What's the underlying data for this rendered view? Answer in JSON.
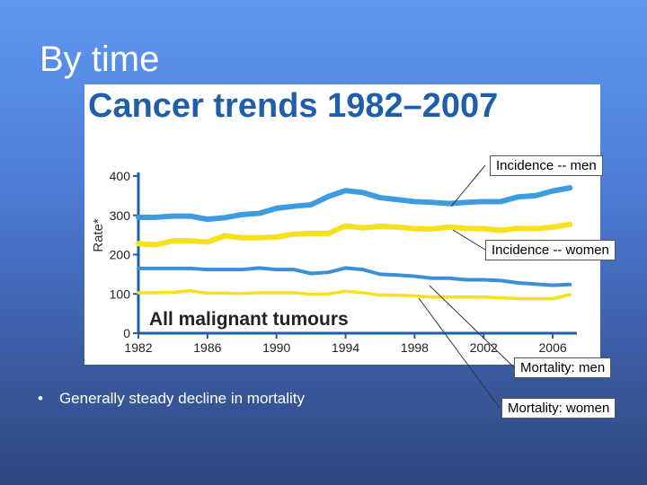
{
  "slide": {
    "title": "By time",
    "bullet": "Generally steady decline in mortality"
  },
  "callouts": [
    {
      "id": "incidence-men",
      "label": "Incidence -- men"
    },
    {
      "id": "incidence-women",
      "label": "Incidence -- women"
    },
    {
      "id": "mortality-men",
      "label": "Mortality:  men"
    },
    {
      "id": "mortality-women",
      "label": "Mortality: women"
    }
  ],
  "chart_data": {
    "type": "line",
    "title": "Cancer trends 1982–2007",
    "subtitle": "All malignant tumours",
    "xlabel": "",
    "ylabel": "Rate*",
    "x": [
      1982,
      1983,
      1984,
      1985,
      1986,
      1987,
      1988,
      1989,
      1990,
      1991,
      1992,
      1993,
      1994,
      1995,
      1996,
      1997,
      1998,
      1999,
      2000,
      2001,
      2002,
      2003,
      2004,
      2005,
      2006,
      2007
    ],
    "xticks": [
      1982,
      1986,
      1990,
      1994,
      1998,
      2002,
      2006
    ],
    "yticks": [
      0,
      100,
      200,
      300,
      400
    ],
    "xlim": [
      1982,
      2007.4
    ],
    "ylim": [
      0,
      400
    ],
    "grid": false,
    "series": [
      {
        "values": [
          295,
          295,
          298,
          298,
          290,
          294,
          302,
          305,
          318,
          323,
          327,
          348,
          363,
          358,
          345,
          340,
          335,
          333,
          330,
          333,
          335,
          335,
          347,
          350,
          362,
          370
        ],
        "color": "#3d9be0"
      },
      {
        "values": [
          228,
          225,
          235,
          235,
          232,
          248,
          243,
          243,
          245,
          252,
          254,
          254,
          273,
          268,
          272,
          270,
          266,
          265,
          270,
          267,
          266,
          262,
          267,
          266,
          270,
          277
        ],
        "color": "#f7e01c"
      },
      {
        "values": [
          165,
          165,
          165,
          165,
          162,
          162,
          162,
          166,
          162,
          162,
          152,
          155,
          166,
          162,
          150,
          148,
          145,
          140,
          140,
          136,
          136,
          134,
          128,
          125,
          122,
          124
        ],
        "color": "#3a8fd8"
      },
      {
        "values": [
          103,
          103,
          104,
          108,
          102,
          102,
          101,
          103,
          103,
          103,
          99,
          100,
          107,
          103,
          97,
          97,
          95,
          92,
          92,
          92,
          92,
          90,
          88,
          88,
          88,
          98
        ],
        "color": "#f7e01c"
      }
    ]
  }
}
